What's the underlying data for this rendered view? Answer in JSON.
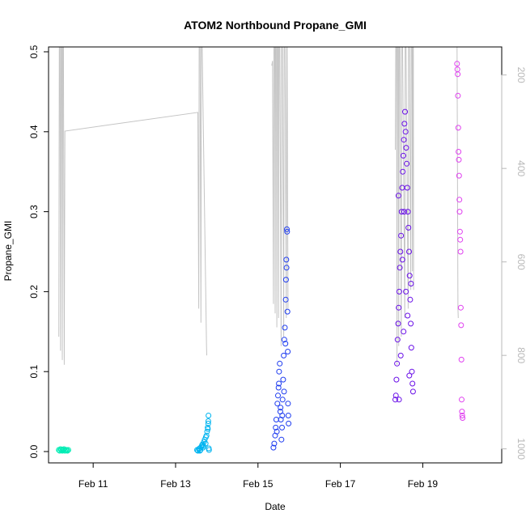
{
  "chart_data": {
    "type": "scatter",
    "title": "ATOM2 Northbound Propane_GMI",
    "xlabel": "Date",
    "ylabel": "Propane_GMI",
    "xlim": [
      "2017-02-09T22:00",
      "2017-02-20T22:00"
    ],
    "ylim": [
      0,
      0.5
    ],
    "x_ticks": [
      {
        "date": "2017-02-11",
        "label": "Feb 11"
      },
      {
        "date": "2017-02-13",
        "label": "Feb 13"
      },
      {
        "date": "2017-02-15",
        "label": "Feb 15"
      },
      {
        "date": "2017-02-17",
        "label": "Feb 17"
      },
      {
        "date": "2017-02-19",
        "label": "Feb 19"
      }
    ],
    "y_ticks": [
      0.0,
      0.1,
      0.2,
      0.3,
      0.4,
      0.5
    ],
    "y_tick_labels": [
      "0.0",
      "0.1",
      "0.2",
      "0.3",
      "0.4",
      "0.5"
    ],
    "right_axis": {
      "label": "",
      "reversed": true,
      "ticks": [
        200,
        400,
        600,
        800,
        1000
      ],
      "tick_labels": [
        "200",
        "400",
        "600",
        "800",
        "1000"
      ],
      "range": [
        140,
        1030
      ],
      "color": "#b8b8b8",
      "line_color": "#c4c4c4"
    },
    "grid": false,
    "legend": "none",
    "series": [
      {
        "color": "#00ecb4",
        "points": [
          [
            "2017-02-10T04:00",
            0.002
          ],
          [
            "2017-02-10T04:30",
            0.001
          ],
          [
            "2017-02-10T05:00",
            0.003
          ],
          [
            "2017-02-10T05:30",
            0.002
          ],
          [
            "2017-02-10T06:00",
            0.001
          ],
          [
            "2017-02-10T06:30",
            0.002
          ],
          [
            "2017-02-10T07:00",
            0.003
          ],
          [
            "2017-02-10T07:30",
            0.001
          ],
          [
            "2017-02-10T08:00",
            0.002
          ],
          [
            "2017-02-10T08:30",
            0.002
          ],
          [
            "2017-02-10T09:00",
            0.001
          ],
          [
            "2017-02-10T09:30",
            0.002
          ]
        ],
        "profile": [
          [
            "2017-02-10T04:00",
            760
          ],
          [
            "2017-02-10T04:15",
            140
          ],
          [
            "2017-02-10T04:40",
            140
          ],
          [
            "2017-02-10T05:00",
            790
          ],
          [
            "2017-02-10T05:15",
            140
          ],
          [
            "2017-02-10T05:40",
            140
          ],
          [
            "2017-02-10T06:00",
            810
          ],
          [
            "2017-02-10T06:15",
            140
          ],
          [
            "2017-02-10T06:40",
            140
          ],
          [
            "2017-02-10T07:10",
            820
          ],
          [
            "2017-02-10T07:30",
            320
          ],
          [
            "2017-02-13T13:00",
            280
          ],
          [
            "2017-02-13T13:30",
            700
          ],
          [
            "2017-02-13T13:45",
            140
          ],
          [
            "2017-02-13T14:15",
            140
          ],
          [
            "2017-02-13T14:45",
            730
          ],
          [
            "2017-02-13T15:00",
            140
          ],
          [
            "2017-02-13T15:30",
            140
          ],
          [
            "2017-02-13T18:00",
            780
          ],
          [
            "2017-02-13T18:10",
            800
          ]
        ]
      },
      {
        "color": "#00b4f0",
        "points": [
          [
            "2017-02-13T12:30",
            0.002
          ],
          [
            "2017-02-13T13:00",
            0.001
          ],
          [
            "2017-02-13T13:30",
            0.003
          ],
          [
            "2017-02-13T14:00",
            0.004
          ],
          [
            "2017-02-13T14:30",
            0.002
          ],
          [
            "2017-02-13T15:00",
            0.006
          ],
          [
            "2017-02-13T15:30",
            0.008
          ],
          [
            "2017-02-13T16:00",
            0.005
          ],
          [
            "2017-02-13T16:30",
            0.012
          ],
          [
            "2017-02-13T17:00",
            0.015
          ],
          [
            "2017-02-13T17:30",
            0.01
          ],
          [
            "2017-02-13T18:00",
            0.02
          ],
          [
            "2017-02-13T18:20",
            0.025
          ],
          [
            "2017-02-13T18:40",
            0.03
          ],
          [
            "2017-02-13T19:00",
            0.035
          ],
          [
            "2017-02-13T19:10",
            0.045
          ],
          [
            "2017-02-13T19:20",
            0.004
          ],
          [
            "2017-02-13T19:30",
            0.002
          ],
          [
            "2017-02-13T14:10",
            0.001
          ],
          [
            "2017-02-13T16:10",
            0.007
          ],
          [
            "2017-02-13T17:40",
            0.018
          ],
          [
            "2017-02-13T18:50",
            0.028
          ],
          [
            "2017-02-13T19:05",
            0.038
          ],
          [
            "2017-02-13T15:40",
            0.009
          ]
        ]
      },
      {
        "color": "#1e3cf0",
        "points": [
          [
            "2017-02-15T09:00",
            0.005
          ],
          [
            "2017-02-15T09:30",
            0.01
          ],
          [
            "2017-02-15T10:00",
            0.02
          ],
          [
            "2017-02-15T10:20",
            0.03
          ],
          [
            "2017-02-15T10:40",
            0.04
          ],
          [
            "2017-02-15T11:00",
            0.025
          ],
          [
            "2017-02-15T11:20",
            0.06
          ],
          [
            "2017-02-15T11:40",
            0.07
          ],
          [
            "2017-02-15T12:00",
            0.08
          ],
          [
            "2017-02-15T12:20",
            0.1
          ],
          [
            "2017-02-15T12:40",
            0.11
          ],
          [
            "2017-02-15T13:00",
            0.05
          ],
          [
            "2017-02-15T13:20",
            0.04
          ],
          [
            "2017-02-15T13:40",
            0.015
          ],
          [
            "2017-02-15T14:00",
            0.03
          ],
          [
            "2017-02-15T14:20",
            0.065
          ],
          [
            "2017-02-15T14:40",
            0.09
          ],
          [
            "2017-02-15T15:00",
            0.12
          ],
          [
            "2017-02-15T15:20",
            0.14
          ],
          [
            "2017-02-15T15:40",
            0.155
          ],
          [
            "2017-02-15T16:00",
            0.135
          ],
          [
            "2017-02-15T16:10",
            0.19
          ],
          [
            "2017-02-15T16:20",
            0.215
          ],
          [
            "2017-02-15T16:30",
            0.24
          ],
          [
            "2017-02-15T16:40",
            0.23
          ],
          [
            "2017-02-15T16:50",
            0.278
          ],
          [
            "2017-02-15T17:00",
            0.275
          ],
          [
            "2017-02-15T17:10",
            0.175
          ],
          [
            "2017-02-15T17:20",
            0.125
          ],
          [
            "2017-02-15T17:30",
            0.06
          ],
          [
            "2017-02-15T17:40",
            0.045
          ],
          [
            "2017-02-15T17:50",
            0.035
          ],
          [
            "2017-02-15T12:10",
            0.085
          ],
          [
            "2017-02-15T13:10",
            0.055
          ],
          [
            "2017-02-15T14:10",
            0.045
          ],
          [
            "2017-02-15T15:10",
            0.075
          ]
        ],
        "profile": [
          [
            "2017-02-15T08:00",
            180
          ],
          [
            "2017-02-15T08:30",
            170
          ],
          [
            "2017-02-15T09:00",
            690
          ],
          [
            "2017-02-15T09:15",
            140
          ],
          [
            "2017-02-15T09:45",
            140
          ],
          [
            "2017-02-15T10:00",
            710
          ],
          [
            "2017-02-15T10:15",
            140
          ],
          [
            "2017-02-15T10:45",
            140
          ],
          [
            "2017-02-15T11:00",
            740
          ],
          [
            "2017-02-15T11:15",
            140
          ],
          [
            "2017-02-15T11:45",
            140
          ],
          [
            "2017-02-15T12:00",
            720
          ],
          [
            "2017-02-15T12:15",
            140
          ],
          [
            "2017-02-15T12:45",
            140
          ],
          [
            "2017-02-15T13:30",
            780
          ],
          [
            "2017-02-15T13:45",
            140
          ],
          [
            "2017-02-15T14:15",
            140
          ],
          [
            "2017-02-15T15:00",
            760
          ],
          [
            "2017-02-15T15:15",
            140
          ],
          [
            "2017-02-15T15:45",
            140
          ],
          [
            "2017-02-15T16:30",
            720
          ],
          [
            "2017-02-15T16:45",
            140
          ],
          [
            "2017-02-15T17:00",
            140
          ],
          [
            "2017-02-15T17:30",
            700
          ]
        ]
      },
      {
        "color": "#6a10e8",
        "points": [
          [
            "2017-02-18T08:00",
            0.065
          ],
          [
            "2017-02-18T08:20",
            0.07
          ],
          [
            "2017-02-18T08:40",
            0.09
          ],
          [
            "2017-02-18T09:00",
            0.11
          ],
          [
            "2017-02-18T09:20",
            0.14
          ],
          [
            "2017-02-18T09:40",
            0.16
          ],
          [
            "2017-02-18T10:00",
            0.18
          ],
          [
            "2017-02-18T10:20",
            0.2
          ],
          [
            "2017-02-18T10:40",
            0.23
          ],
          [
            "2017-02-18T11:00",
            0.25
          ],
          [
            "2017-02-18T11:20",
            0.27
          ],
          [
            "2017-02-18T11:40",
            0.3
          ],
          [
            "2017-02-18T12:00",
            0.33
          ],
          [
            "2017-02-18T12:20",
            0.35
          ],
          [
            "2017-02-18T12:40",
            0.37
          ],
          [
            "2017-02-18T13:00",
            0.39
          ],
          [
            "2017-02-18T13:20",
            0.41
          ],
          [
            "2017-02-18T13:40",
            0.425
          ],
          [
            "2017-02-18T14:00",
            0.4
          ],
          [
            "2017-02-18T14:20",
            0.38
          ],
          [
            "2017-02-18T14:40",
            0.36
          ],
          [
            "2017-02-18T15:00",
            0.33
          ],
          [
            "2017-02-18T15:20",
            0.3
          ],
          [
            "2017-02-18T15:40",
            0.28
          ],
          [
            "2017-02-18T16:00",
            0.25
          ],
          [
            "2017-02-18T16:20",
            0.22
          ],
          [
            "2017-02-18T16:40",
            0.19
          ],
          [
            "2017-02-18T17:00",
            0.16
          ],
          [
            "2017-02-18T17:20",
            0.13
          ],
          [
            "2017-02-18T17:40",
            0.1
          ],
          [
            "2017-02-18T18:00",
            0.085
          ],
          [
            "2017-02-18T18:20",
            0.075
          ],
          [
            "2017-02-18T10:10",
            0.065
          ],
          [
            "2017-02-18T11:10",
            0.12
          ],
          [
            "2017-02-18T12:10",
            0.24
          ],
          [
            "2017-02-18T13:10",
            0.3
          ],
          [
            "2017-02-18T14:10",
            0.2
          ],
          [
            "2017-02-18T15:10",
            0.17
          ],
          [
            "2017-02-18T16:10",
            0.095
          ],
          [
            "2017-02-18T17:10",
            0.21
          ],
          [
            "2017-02-18T09:50",
            0.32
          ],
          [
            "2017-02-18T12:50",
            0.15
          ]
        ],
        "profile": [
          [
            "2017-02-18T08:00",
            360
          ],
          [
            "2017-02-18T08:15",
            140
          ],
          [
            "2017-02-18T08:45",
            140
          ],
          [
            "2017-02-18T09:00",
            820
          ],
          [
            "2017-02-18T09:15",
            140
          ],
          [
            "2017-02-18T09:45",
            140
          ],
          [
            "2017-02-18T10:00",
            780
          ],
          [
            "2017-02-18T10:15",
            140
          ],
          [
            "2017-02-18T10:45",
            140
          ],
          [
            "2017-02-18T11:30",
            760
          ],
          [
            "2017-02-18T11:45",
            140
          ],
          [
            "2017-02-18T12:15",
            140
          ],
          [
            "2017-02-18T13:30",
            720
          ],
          [
            "2017-02-18T13:45",
            140
          ],
          [
            "2017-02-18T14:15",
            140
          ],
          [
            "2017-02-18T15:30",
            700
          ],
          [
            "2017-02-18T15:45",
            140
          ],
          [
            "2017-02-18T16:15",
            140
          ],
          [
            "2017-02-18T17:00",
            660
          ],
          [
            "2017-02-18T17:15",
            140
          ],
          [
            "2017-02-18T17:45",
            140
          ],
          [
            "2017-02-18T18:00",
            620
          ],
          [
            "2017-02-18T18:15",
            140
          ],
          [
            "2017-02-18T18:30",
            140
          ],
          [
            "2017-02-18T18:40",
            660
          ]
        ]
      },
      {
        "color": "#e040f0",
        "points": [
          [
            "2017-02-19T20:00",
            0.485
          ],
          [
            "2017-02-19T20:10",
            0.478
          ],
          [
            "2017-02-19T20:20",
            0.472
          ],
          [
            "2017-02-19T20:30",
            0.445
          ],
          [
            "2017-02-19T20:40",
            0.405
          ],
          [
            "2017-02-19T20:50",
            0.375
          ],
          [
            "2017-02-19T21:00",
            0.365
          ],
          [
            "2017-02-19T21:10",
            0.345
          ],
          [
            "2017-02-19T21:20",
            0.315
          ],
          [
            "2017-02-19T21:30",
            0.3
          ],
          [
            "2017-02-19T21:40",
            0.275
          ],
          [
            "2017-02-19T21:50",
            0.265
          ],
          [
            "2017-02-19T22:00",
            0.25
          ],
          [
            "2017-02-19T22:10",
            0.18
          ],
          [
            "2017-02-19T22:20",
            0.158
          ],
          [
            "2017-02-19T22:30",
            0.115
          ],
          [
            "2017-02-19T22:40",
            0.065
          ],
          [
            "2017-02-19T22:50",
            0.05
          ],
          [
            "2017-02-19T23:00",
            0.045
          ],
          [
            "2017-02-19T23:10",
            0.042
          ]
        ],
        "profile": [
          [
            "2017-02-19T14:00",
            140
          ],
          [
            "2017-02-19T20:00",
            140
          ],
          [
            "2017-02-19T20:30",
            700
          ],
          [
            "2017-02-19T20:40",
            720
          ]
        ]
      }
    ]
  }
}
